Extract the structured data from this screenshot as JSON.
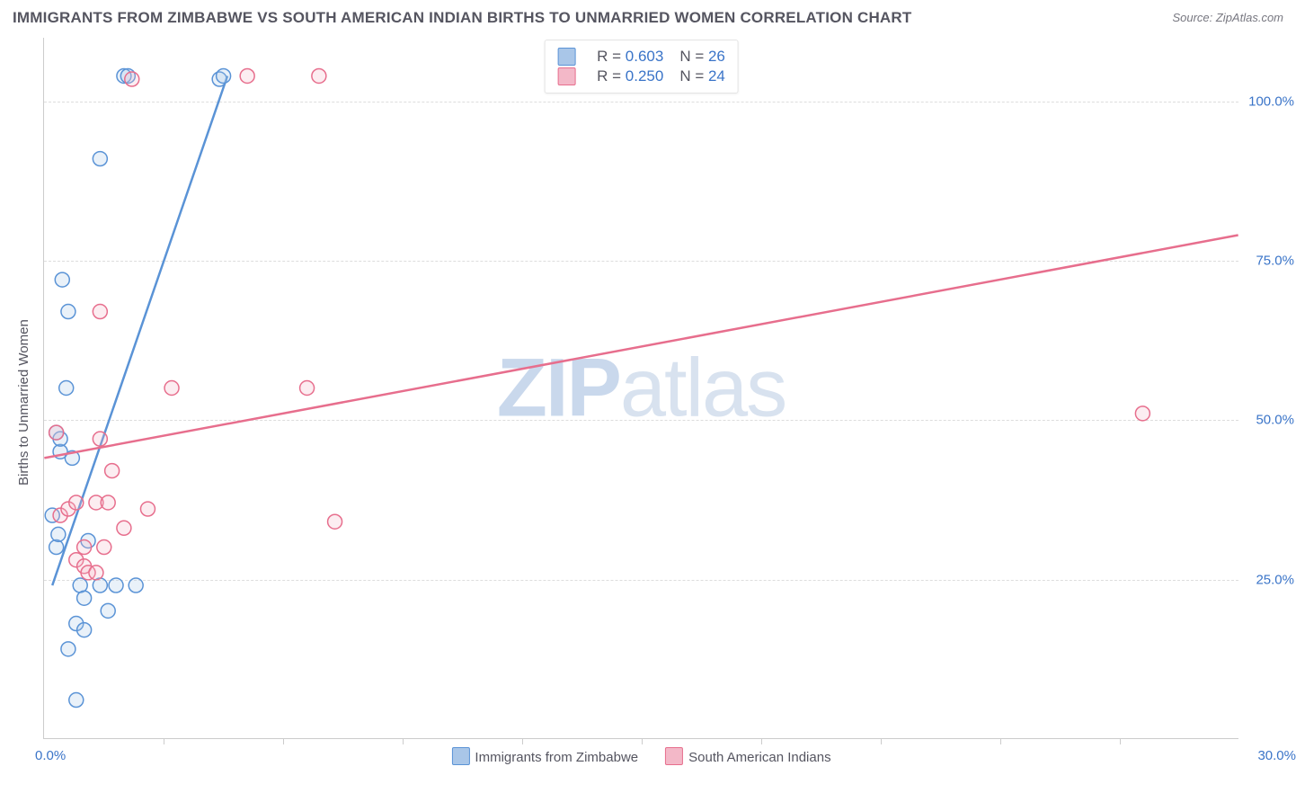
{
  "chart": {
    "title": "IMMIGRANTS FROM ZIMBABWE VS SOUTH AMERICAN INDIAN BIRTHS TO UNMARRIED WOMEN CORRELATION CHART",
    "source_text": "Source: ZipAtlas.com",
    "watermark_prefix": "ZIP",
    "watermark_suffix": "atlas",
    "y_axis_label": "Births to Unmarried Women",
    "type": "scatter",
    "xlim": [
      0,
      30
    ],
    "ylim": [
      0,
      110
    ],
    "background_color": "#ffffff",
    "grid_color": "#dddddd",
    "axis_color": "#cccccc",
    "tick_label_color": "#3a74c8",
    "title_color": "#555560",
    "yticks": [
      {
        "value": 25,
        "label": "25.0%"
      },
      {
        "value": 50,
        "label": "50.0%"
      },
      {
        "value": 75,
        "label": "75.0%"
      },
      {
        "value": 100,
        "label": "100.0%"
      }
    ],
    "xticks_minor": [
      3,
      6,
      9,
      12,
      15,
      18,
      21,
      24,
      27
    ],
    "xtick_label_left": "0.0%",
    "xtick_label_right": "30.0%",
    "marker_radius": 8,
    "series": [
      {
        "id": "zimbabwe",
        "label": "Immigrants from Zimbabwe",
        "color_stroke": "#5a93d6",
        "color_fill": "#a9c6e8",
        "r_value": "0.603",
        "n_value": "26",
        "trend": {
          "x1": 0.2,
          "y1": 24,
          "x2": 4.6,
          "y2": 104
        },
        "points": [
          {
            "x": 0.2,
            "y": 35
          },
          {
            "x": 0.3,
            "y": 30
          },
          {
            "x": 0.35,
            "y": 32
          },
          {
            "x": 0.4,
            "y": 45
          },
          {
            "x": 0.4,
            "y": 47
          },
          {
            "x": 0.45,
            "y": 72
          },
          {
            "x": 0.55,
            "y": 55
          },
          {
            "x": 0.6,
            "y": 14
          },
          {
            "x": 0.7,
            "y": 44
          },
          {
            "x": 0.8,
            "y": 18
          },
          {
            "x": 0.8,
            "y": 6
          },
          {
            "x": 0.9,
            "y": 24
          },
          {
            "x": 1.0,
            "y": 22
          },
          {
            "x": 1.0,
            "y": 17
          },
          {
            "x": 1.1,
            "y": 31
          },
          {
            "x": 1.4,
            "y": 24
          },
          {
            "x": 1.4,
            "y": 91
          },
          {
            "x": 1.6,
            "y": 20
          },
          {
            "x": 2.0,
            "y": 104
          },
          {
            "x": 2.1,
            "y": 104
          },
          {
            "x": 2.3,
            "y": 24
          },
          {
            "x": 1.8,
            "y": 24
          },
          {
            "x": 4.4,
            "y": 103.5
          },
          {
            "x": 4.5,
            "y": 104
          },
          {
            "x": 0.3,
            "y": 48
          },
          {
            "x": 0.6,
            "y": 67
          }
        ]
      },
      {
        "id": "sai",
        "label": "South American Indians",
        "color_stroke": "#e76e8d",
        "color_fill": "#f3b8c8",
        "r_value": "0.250",
        "n_value": "24",
        "trend": {
          "x1": 0,
          "y1": 44,
          "x2": 30,
          "y2": 79
        },
        "points": [
          {
            "x": 0.3,
            "y": 48
          },
          {
            "x": 0.4,
            "y": 35
          },
          {
            "x": 0.6,
            "y": 36
          },
          {
            "x": 0.8,
            "y": 28
          },
          {
            "x": 0.8,
            "y": 37
          },
          {
            "x": 1.0,
            "y": 27
          },
          {
            "x": 1.0,
            "y": 30
          },
          {
            "x": 1.1,
            "y": 26
          },
          {
            "x": 1.3,
            "y": 26
          },
          {
            "x": 1.3,
            "y": 37
          },
          {
            "x": 1.4,
            "y": 47
          },
          {
            "x": 1.4,
            "y": 67
          },
          {
            "x": 1.5,
            "y": 30
          },
          {
            "x": 1.6,
            "y": 37
          },
          {
            "x": 1.7,
            "y": 42
          },
          {
            "x": 2.0,
            "y": 33
          },
          {
            "x": 2.2,
            "y": 103.5
          },
          {
            "x": 2.6,
            "y": 36
          },
          {
            "x": 3.2,
            "y": 55
          },
          {
            "x": 5.1,
            "y": 104
          },
          {
            "x": 6.6,
            "y": 55
          },
          {
            "x": 6.9,
            "y": 104
          },
          {
            "x": 7.3,
            "y": 34
          },
          {
            "x": 27.6,
            "y": 51
          }
        ]
      }
    ]
  }
}
